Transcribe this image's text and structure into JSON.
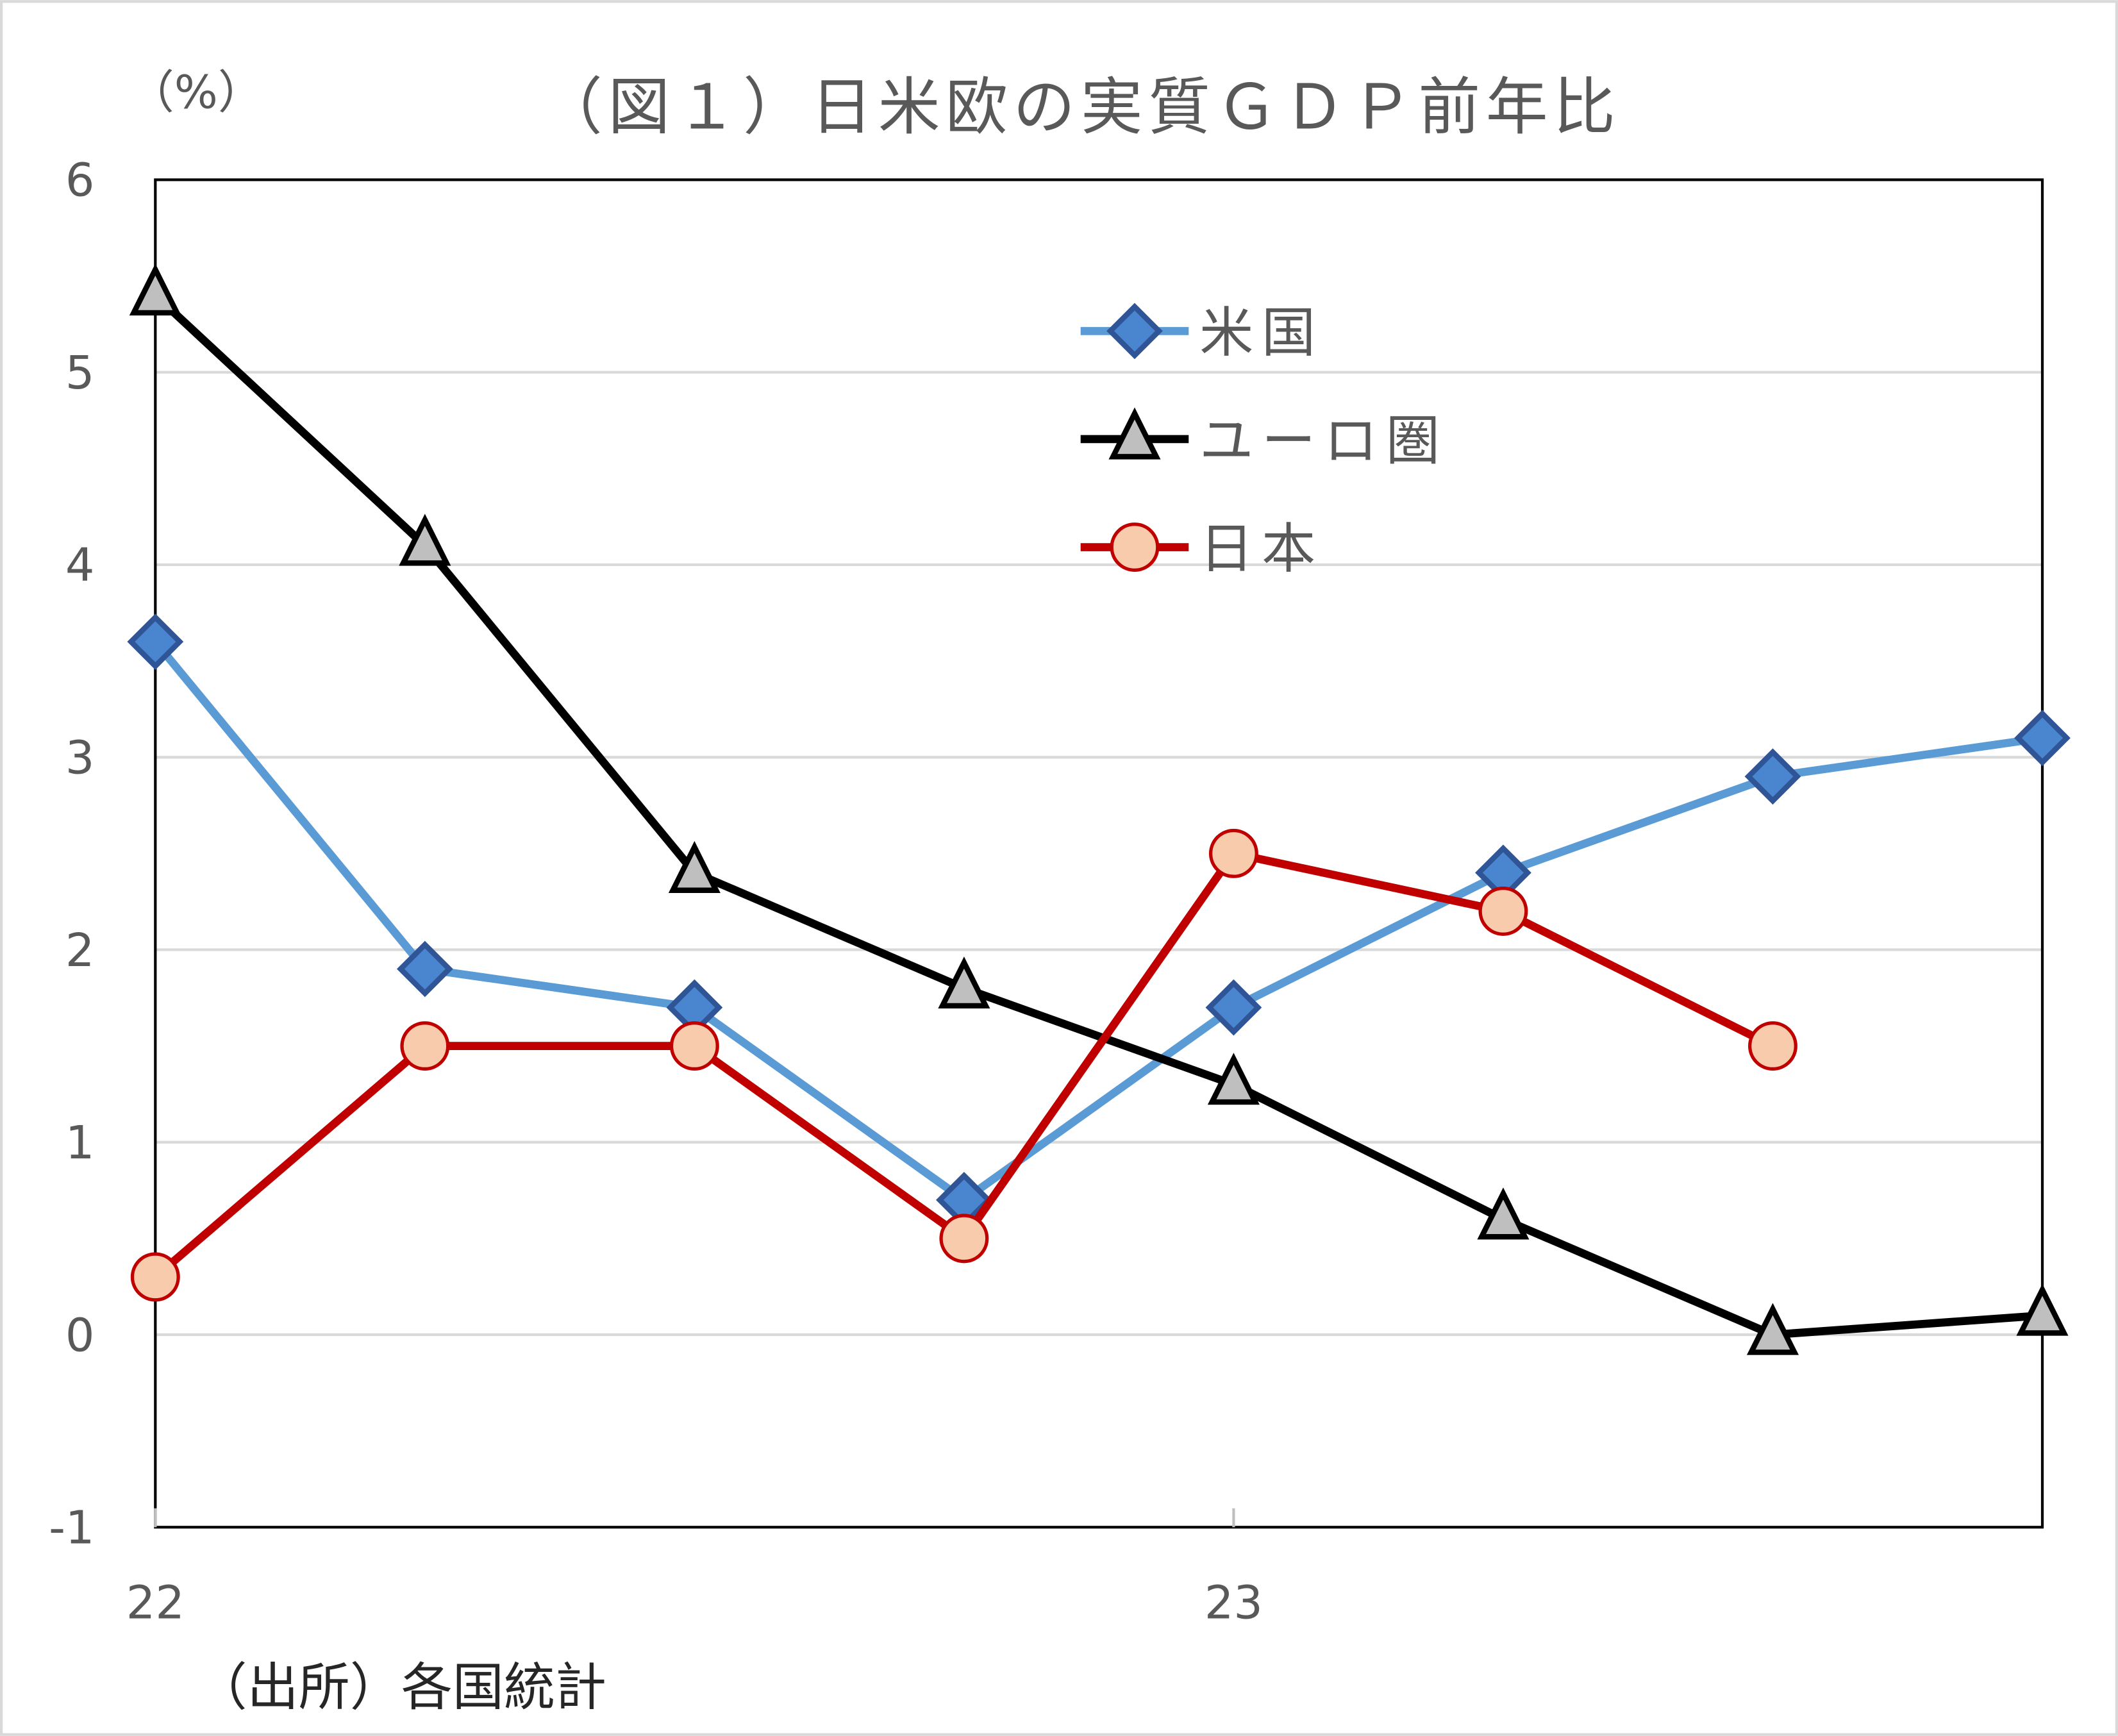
{
  "chart_data": {
    "type": "line",
    "title": "（図１）日米欧の実質ＧＤＰ前年比",
    "ylabel": "（%）",
    "source_note": "（出所）各国統計",
    "ylim": [
      -1,
      6
    ],
    "yticks": [
      6,
      5,
      4,
      3,
      2,
      1,
      0,
      -1
    ],
    "x_tick_labels": [
      {
        "index": 0,
        "label": "22"
      },
      {
        "index": 4,
        "label": "23"
      }
    ],
    "n_points": 8,
    "grid": "horizontal",
    "legend_placement": "top-center",
    "series": [
      {
        "name": "米国",
        "color": "#5B9BD5",
        "marker": "diamond",
        "marker_fill": "#4A86D0",
        "marker_stroke": "#2F5597",
        "values": [
          3.6,
          1.9,
          1.7,
          0.7,
          1.7,
          2.4,
          2.9,
          3.1
        ]
      },
      {
        "name": "ユーロ圏",
        "color": "#000000",
        "marker": "triangle",
        "marker_fill": "#BFBFBF",
        "marker_stroke": "#000000",
        "values": [
          5.4,
          4.1,
          2.4,
          1.8,
          1.3,
          0.6,
          0.0,
          0.1
        ]
      },
      {
        "name": "日本",
        "color": "#C00000",
        "marker": "circle",
        "marker_fill": "#F8CBAD",
        "marker_stroke": "#C00000",
        "values": [
          0.3,
          1.5,
          1.5,
          0.5,
          2.5,
          2.2,
          1.5
        ]
      }
    ]
  }
}
